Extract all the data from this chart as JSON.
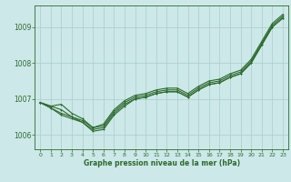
{
  "bg_color": "#cce8e8",
  "grid_color": "#aacccc",
  "line_color": "#2d6a2d",
  "xlabel": "Graphe pression niveau de la mer (hPa)",
  "x_ticks": [
    0,
    1,
    2,
    3,
    4,
    5,
    6,
    7,
    8,
    9,
    10,
    11,
    12,
    13,
    14,
    15,
    16,
    17,
    18,
    19,
    20,
    21,
    22,
    23
  ],
  "ylim": [
    1005.6,
    1009.6
  ],
  "y_ticks": [
    1006,
    1007,
    1008,
    1009
  ],
  "series": [
    [
      1006.9,
      1006.8,
      1006.85,
      1006.6,
      1006.45,
      1006.2,
      1006.25,
      1006.65,
      1006.9,
      1007.05,
      1007.1,
      1007.2,
      1007.25,
      1007.25,
      1007.1,
      1007.3,
      1007.45,
      1007.5,
      1007.65,
      1007.75,
      1008.05,
      1008.55,
      1009.05,
      1009.3
    ],
    [
      1006.9,
      1006.75,
      1006.55,
      1006.45,
      1006.35,
      1006.1,
      1006.15,
      1006.55,
      1006.8,
      1007.0,
      1007.05,
      1007.15,
      1007.2,
      1007.2,
      1007.05,
      1007.25,
      1007.4,
      1007.45,
      1007.6,
      1007.7,
      1008.0,
      1008.5,
      1009.0,
      1009.25
    ],
    [
      1006.9,
      1006.8,
      1006.7,
      1006.5,
      1006.4,
      1006.2,
      1006.3,
      1006.7,
      1006.95,
      1007.1,
      1007.15,
      1007.25,
      1007.3,
      1007.3,
      1007.15,
      1007.35,
      1007.5,
      1007.55,
      1007.7,
      1007.8,
      1008.1,
      1008.6,
      1009.1,
      1009.35
    ],
    [
      1006.9,
      1006.75,
      1006.6,
      1006.5,
      1006.35,
      1006.15,
      1006.2,
      1006.6,
      1006.85,
      1007.0,
      1007.05,
      1007.15,
      1007.2,
      1007.2,
      1007.05,
      1007.25,
      1007.4,
      1007.45,
      1007.6,
      1007.7,
      1008.0,
      1008.5,
      1009.0,
      1009.25
    ]
  ]
}
